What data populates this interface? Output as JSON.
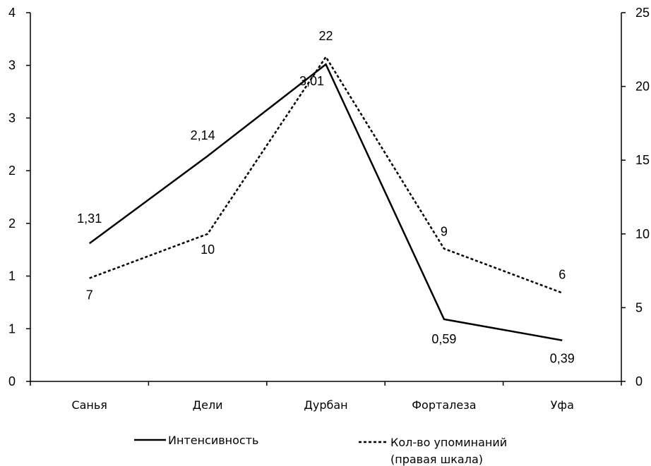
{
  "chart_data": {
    "type": "line",
    "categories": [
      "Санья",
      "Дели",
      "Дурбан",
      "Форталеза",
      "Уфа"
    ],
    "series": [
      {
        "name": "Интенсивность",
        "axis": "left",
        "style": "solid",
        "values": [
          1.31,
          2.14,
          3.01,
          0.59,
          0.39
        ],
        "labels": [
          "1,31",
          "2,14",
          "3,01",
          "0,59",
          "0,39"
        ]
      },
      {
        "name": "Кол-во упоминаний",
        "name_line2": "(правая шкала)",
        "axis": "right",
        "style": "dashed",
        "values": [
          7,
          10,
          22,
          9,
          6
        ],
        "labels": [
          "7",
          "10",
          "22",
          "9",
          "6"
        ]
      }
    ],
    "left_axis": {
      "ylim": [
        0,
        3.5
      ],
      "ticks": [
        0,
        0.5,
        1,
        1.5,
        2,
        2.5,
        3,
        3.5
      ],
      "tick_labels": [
        "0",
        "1",
        "1",
        "2",
        "2",
        "3",
        "3",
        "4"
      ]
    },
    "right_axis": {
      "ylim": [
        0,
        25
      ],
      "ticks": [
        0,
        5,
        10,
        15,
        20,
        25
      ],
      "tick_labels": [
        "0",
        "5",
        "10",
        "15",
        "20",
        "25"
      ]
    },
    "grid": false,
    "legend_position": "bottom",
    "colors": {
      "line": "#000000",
      "background": "#ffffff"
    }
  }
}
